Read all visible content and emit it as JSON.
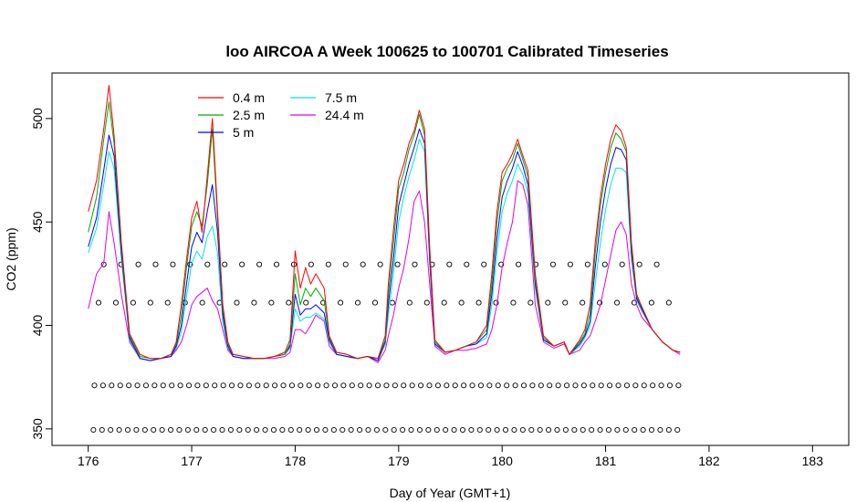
{
  "chart_data": {
    "type": "line",
    "title": "loo AIRCOA A  Week 100625 to 100701  Calibrated Timeseries",
    "xlabel": "Day of Year (GMT+1)",
    "ylabel": "CO2 (ppm)",
    "xlim": [
      175.65,
      183.35
    ],
    "ylim": [
      342,
      522
    ],
    "xticks": [
      176,
      177,
      178,
      179,
      180,
      181,
      182,
      183
    ],
    "yticks": [
      350,
      400,
      450,
      500
    ],
    "legend_position": "top-left",
    "series": [
      {
        "name": "0.4 m",
        "color": "#ff0000",
        "x": [
          176.0,
          176.08,
          176.15,
          176.2,
          176.25,
          176.32,
          176.4,
          176.5,
          176.6,
          176.7,
          176.8,
          176.85,
          176.9,
          176.95,
          177.0,
          177.05,
          177.1,
          177.15,
          177.2,
          177.25,
          177.3,
          177.35,
          177.4,
          177.5,
          177.6,
          177.7,
          177.8,
          177.9,
          177.95,
          178.0,
          178.05,
          178.1,
          178.15,
          178.2,
          178.28,
          178.33,
          178.4,
          178.5,
          178.6,
          178.7,
          178.8,
          178.87,
          178.9,
          178.95,
          179.0,
          179.05,
          179.1,
          179.15,
          179.2,
          179.25,
          179.3,
          179.35,
          179.45,
          179.55,
          179.65,
          179.75,
          179.85,
          179.9,
          179.95,
          180.0,
          180.05,
          180.1,
          180.15,
          180.2,
          180.25,
          180.32,
          180.4,
          180.5,
          180.6,
          180.65,
          180.75,
          180.8,
          180.85,
          180.9,
          180.95,
          181.0,
          181.05,
          181.1,
          181.15,
          181.2,
          181.25,
          181.3,
          181.35,
          181.45,
          181.55,
          181.65,
          181.72
        ],
        "y": [
          455,
          470,
          495,
          516,
          492,
          440,
          396,
          386,
          384,
          384,
          386,
          392,
          410,
          432,
          452,
          460,
          445,
          472,
          500,
          455,
          410,
          392,
          386,
          385,
          384,
          384,
          385,
          387,
          393,
          436,
          418,
          428,
          420,
          425,
          418,
          395,
          387,
          386,
          384,
          385,
          384,
          395,
          420,
          446,
          470,
          478,
          488,
          494,
          504,
          495,
          438,
          393,
          387,
          388,
          390,
          392,
          400,
          425,
          455,
          474,
          478,
          483,
          490,
          482,
          475,
          425,
          395,
          390,
          392,
          386,
          393,
          398,
          410,
          440,
          462,
          478,
          490,
          497,
          494,
          486,
          440,
          415,
          409,
          398,
          392,
          388,
          387
        ]
      },
      {
        "name": "2.5 m",
        "color": "#00aa00",
        "x": [
          176.0,
          176.08,
          176.15,
          176.2,
          176.25,
          176.32,
          176.4,
          176.5,
          176.6,
          176.7,
          176.8,
          176.85,
          176.9,
          176.95,
          177.0,
          177.05,
          177.1,
          177.15,
          177.2,
          177.25,
          177.3,
          177.35,
          177.4,
          177.5,
          177.6,
          177.7,
          177.8,
          177.9,
          177.95,
          178.0,
          178.05,
          178.1,
          178.15,
          178.2,
          178.28,
          178.33,
          178.4,
          178.5,
          178.6,
          178.7,
          178.8,
          178.87,
          178.9,
          178.95,
          179.0,
          179.05,
          179.1,
          179.15,
          179.2,
          179.25,
          179.3,
          179.35,
          179.45,
          179.55,
          179.65,
          179.75,
          179.85,
          179.9,
          179.95,
          180.0,
          180.05,
          180.1,
          180.15,
          180.2,
          180.25,
          180.32,
          180.4,
          180.5,
          180.6,
          180.65,
          180.75,
          180.8,
          180.85,
          180.9,
          180.95,
          181.0,
          181.05,
          181.1,
          181.15,
          181.2,
          181.25,
          181.3,
          181.35,
          181.45,
          181.55,
          181.65,
          181.72
        ],
        "y": [
          445,
          462,
          490,
          508,
          488,
          438,
          395,
          385,
          384,
          384,
          386,
          391,
          405,
          428,
          448,
          455,
          448,
          468,
          495,
          452,
          408,
          391,
          386,
          385,
          384,
          384,
          385,
          386,
          391,
          425,
          410,
          418,
          414,
          418,
          412,
          394,
          387,
          386,
          384,
          385,
          384,
          393,
          415,
          440,
          466,
          474,
          485,
          492,
          502,
          492,
          436,
          392,
          387,
          388,
          390,
          392,
          398,
          420,
          450,
          470,
          476,
          480,
          488,
          480,
          472,
          422,
          394,
          390,
          392,
          386,
          392,
          396,
          406,
          435,
          458,
          474,
          486,
          493,
          490,
          484,
          438,
          414,
          409,
          398,
          392,
          388,
          387
        ]
      },
      {
        "name": "5 m",
        "color": "#0000ff",
        "x": [
          176.0,
          176.08,
          176.15,
          176.2,
          176.25,
          176.32,
          176.4,
          176.5,
          176.6,
          176.7,
          176.8,
          176.85,
          176.9,
          176.95,
          177.0,
          177.05,
          177.1,
          177.15,
          177.2,
          177.25,
          177.3,
          177.35,
          177.4,
          177.5,
          177.6,
          177.7,
          177.8,
          177.9,
          177.95,
          178.0,
          178.05,
          178.1,
          178.15,
          178.2,
          178.28,
          178.33,
          178.4,
          178.5,
          178.6,
          178.7,
          178.8,
          178.87,
          178.9,
          178.95,
          179.0,
          179.05,
          179.1,
          179.15,
          179.2,
          179.25,
          179.3,
          179.35,
          179.45,
          179.55,
          179.65,
          179.75,
          179.85,
          179.9,
          179.95,
          180.0,
          180.05,
          180.1,
          180.15,
          180.2,
          180.25,
          180.32,
          180.4,
          180.5,
          180.6,
          180.65,
          180.75,
          180.8,
          180.85,
          180.9,
          180.95,
          181.0,
          181.05,
          181.1,
          181.15,
          181.2,
          181.25,
          181.3,
          181.35,
          181.45,
          181.55,
          181.65,
          181.72
        ],
        "y": [
          438,
          452,
          475,
          492,
          482,
          435,
          394,
          384,
          383,
          384,
          385,
          390,
          400,
          420,
          438,
          445,
          440,
          455,
          468,
          445,
          405,
          390,
          385,
          384,
          384,
          384,
          385,
          386,
          390,
          415,
          405,
          408,
          408,
          410,
          406,
          393,
          386,
          385,
          384,
          385,
          383,
          392,
          410,
          432,
          458,
          468,
          478,
          486,
          495,
          488,
          432,
          391,
          387,
          388,
          390,
          391,
          396,
          415,
          442,
          462,
          470,
          476,
          484,
          477,
          468,
          420,
          393,
          390,
          392,
          386,
          391,
          395,
          402,
          428,
          450,
          466,
          478,
          486,
          485,
          480,
          435,
          413,
          408,
          398,
          392,
          388,
          387
        ]
      },
      {
        "name": "7.5 m",
        "color": "#00e5e5",
        "x": [
          176.0,
          176.08,
          176.15,
          176.2,
          176.25,
          176.32,
          176.4,
          176.5,
          176.6,
          176.7,
          176.8,
          176.85,
          176.9,
          176.95,
          177.0,
          177.05,
          177.1,
          177.15,
          177.2,
          177.25,
          177.3,
          177.35,
          177.4,
          177.5,
          177.6,
          177.7,
          177.8,
          177.9,
          177.95,
          178.0,
          178.05,
          178.1,
          178.15,
          178.2,
          178.28,
          178.33,
          178.4,
          178.5,
          178.6,
          178.7,
          178.8,
          178.87,
          178.9,
          178.95,
          179.0,
          179.05,
          179.1,
          179.15,
          179.2,
          179.25,
          179.3,
          179.35,
          179.45,
          179.55,
          179.65,
          179.75,
          179.85,
          179.9,
          179.95,
          180.0,
          180.05,
          180.1,
          180.15,
          180.2,
          180.25,
          180.32,
          180.4,
          180.5,
          180.6,
          180.65,
          180.75,
          180.8,
          180.85,
          180.9,
          180.95,
          181.0,
          181.05,
          181.1,
          181.15,
          181.2,
          181.25,
          181.3,
          181.35,
          181.45,
          181.55,
          181.65,
          181.72
        ],
        "y": [
          435,
          447,
          468,
          484,
          476,
          432,
          393,
          384,
          383,
          384,
          385,
          389,
          397,
          414,
          430,
          436,
          432,
          443,
          448,
          435,
          402,
          389,
          385,
          384,
          384,
          384,
          385,
          386,
          389,
          408,
          402,
          404,
          404,
          406,
          403,
          392,
          386,
          385,
          384,
          385,
          383,
          391,
          405,
          425,
          450,
          462,
          472,
          480,
          490,
          484,
          430,
          391,
          387,
          388,
          390,
          391,
          394,
          410,
          435,
          455,
          464,
          470,
          478,
          473,
          464,
          418,
          393,
          390,
          392,
          386,
          390,
          394,
          400,
          420,
          440,
          456,
          468,
          476,
          476,
          474,
          432,
          412,
          407,
          398,
          392,
          388,
          387
        ]
      },
      {
        "name": "24.4 m",
        "color": "#e600e6",
        "x": [
          176.0,
          176.08,
          176.15,
          176.2,
          176.25,
          176.32,
          176.4,
          176.5,
          176.6,
          176.7,
          176.8,
          176.85,
          176.9,
          176.95,
          177.0,
          177.05,
          177.1,
          177.15,
          177.2,
          177.25,
          177.3,
          177.35,
          177.4,
          177.5,
          177.6,
          177.7,
          177.8,
          177.9,
          177.95,
          178.0,
          178.05,
          178.1,
          178.15,
          178.2,
          178.28,
          178.33,
          178.4,
          178.5,
          178.6,
          178.7,
          178.8,
          178.87,
          178.9,
          178.95,
          179.0,
          179.05,
          179.1,
          179.15,
          179.2,
          179.25,
          179.3,
          179.35,
          179.45,
          179.55,
          179.65,
          179.75,
          179.85,
          179.9,
          179.95,
          180.0,
          180.05,
          180.1,
          180.15,
          180.2,
          180.25,
          180.32,
          180.4,
          180.5,
          180.6,
          180.65,
          180.75,
          180.8,
          180.85,
          180.9,
          180.95,
          181.0,
          181.05,
          181.1,
          181.15,
          181.2,
          181.25,
          181.3,
          181.35,
          181.45,
          181.55,
          181.65,
          181.72
        ],
        "y": [
          408,
          425,
          430,
          455,
          440,
          415,
          392,
          384,
          383,
          384,
          385,
          388,
          392,
          400,
          410,
          414,
          416,
          418,
          412,
          408,
          398,
          388,
          385,
          384,
          384,
          384,
          384,
          385,
          387,
          398,
          398,
          396,
          400,
          405,
          402,
          390,
          386,
          385,
          384,
          385,
          382,
          388,
          395,
          405,
          418,
          428,
          442,
          460,
          465,
          450,
          420,
          390,
          386,
          388,
          388,
          389,
          391,
          398,
          410,
          428,
          440,
          450,
          470,
          468,
          458,
          410,
          392,
          389,
          391,
          386,
          388,
          392,
          395,
          402,
          410,
          422,
          434,
          446,
          450,
          444,
          420,
          410,
          404,
          398,
          392,
          388,
          386
        ]
      }
    ],
    "markers": {
      "shape": "open-circle",
      "x_start": 176.05,
      "x_step": 0.167,
      "x_end": 181.74,
      "rows": [
        {
          "y": 429.5,
          "x_start": 176.15,
          "x_step": 0.167,
          "x_end": 181.6
        },
        {
          "y": 411.0,
          "x_start": 176.1,
          "x_step": 0.167,
          "x_end": 181.7
        },
        {
          "y": 371.0,
          "x_start": 176.06,
          "x_step": 0.083,
          "x_end": 181.74
        },
        {
          "y": 349.5,
          "x_start": 176.05,
          "x_step": 0.083,
          "x_end": 181.74
        }
      ]
    }
  }
}
